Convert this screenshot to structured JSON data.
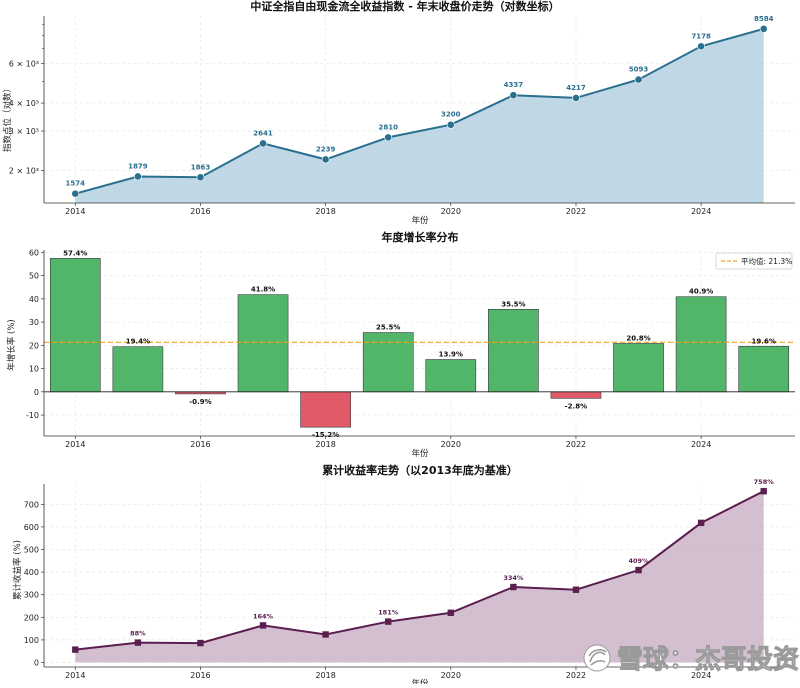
{
  "chart_data": [
    {
      "type": "line",
      "title": "中证全指自由现金流全收益指数 - 年末收盘价走势（对数坐标）",
      "xlabel": "年份",
      "ylabel": "指数点位（对数）",
      "x": [
        2014,
        2015,
        2016,
        2017,
        2018,
        2019,
        2020,
        2021,
        2022,
        2023,
        2024,
        2025
      ],
      "values": [
        1574,
        1879,
        1863,
        2641,
        2239,
        2810,
        3200,
        4337,
        4217,
        5093,
        7178,
        8584
      ],
      "data_labels": [
        "1574",
        "1879",
        "1863",
        "2641",
        "2239",
        "2810",
        "3200",
        "4337",
        "4217",
        "5093",
        "7178",
        "8584"
      ],
      "x_ticks": [
        "2014",
        "2016",
        "2018",
        "2020",
        "2022",
        "2024"
      ],
      "y_ticks": [
        {
          "value": 2000,
          "label": "2 × 10³"
        },
        {
          "value": 3000,
          "label": "3 × 10³"
        },
        {
          "value": 4000,
          "label": "4 × 10³"
        },
        {
          "value": 6000,
          "label": "6 × 10³"
        }
      ],
      "y_scale": "log",
      "xlim": [
        2013.5,
        2025.5
      ],
      "ylim": [
        1430,
        9800
      ],
      "line_color": "#2a6f8f",
      "fill_color": "#b9d4e2",
      "grid": true
    },
    {
      "type": "bar",
      "title": "年度增长率分布",
      "xlabel": "年份",
      "ylabel": "年增长率 (%)",
      "x": [
        2014,
        2015,
        2016,
        2017,
        2018,
        2019,
        2020,
        2021,
        2022,
        2023,
        2024,
        2025
      ],
      "values": [
        57.4,
        19.4,
        -0.9,
        41.8,
        -15.2,
        25.5,
        13.9,
        35.5,
        -2.8,
        20.8,
        40.9,
        19.6
      ],
      "data_labels": [
        "57.4%",
        "19.4%",
        "-0.9%",
        "41.8%",
        "-15.2%",
        "25.5%",
        "13.9%",
        "35.5%",
        "-2.8%",
        "20.8%",
        "40.9%",
        "19.6%"
      ],
      "x_ticks": [
        "2014",
        "2016",
        "2018",
        "2020",
        "2022",
        "2024"
      ],
      "y_ticks": [
        -10,
        0,
        10,
        20,
        30,
        40,
        50,
        60
      ],
      "xlim": [
        2013.5,
        2025.5
      ],
      "ylim": [
        -19,
        61
      ],
      "mean": 21.3,
      "legend_label": "平均值: 21.3%",
      "legend_position": "top-right",
      "positive_color": "#52b66a",
      "negative_color": "#e05a6a",
      "mean_line_color": "#f0a020",
      "grid": true
    },
    {
      "type": "area",
      "title": "累计收益率走势（以2013年底为基准）",
      "xlabel": "年份",
      "ylabel": "累计收益率 (%)",
      "x": [
        2014,
        2015,
        2016,
        2017,
        2018,
        2019,
        2020,
        2021,
        2022,
        2023,
        2024,
        2025
      ],
      "values": [
        57,
        88,
        86,
        164,
        124,
        181,
        220,
        334,
        322,
        409,
        618,
        758
      ],
      "annotations": [
        {
          "x": 2015,
          "label": "88%"
        },
        {
          "x": 2017,
          "label": "164%"
        },
        {
          "x": 2019,
          "label": "181%"
        },
        {
          "x": 2021,
          "label": "334%"
        },
        {
          "x": 2023,
          "label": "409%"
        },
        {
          "x": 2025,
          "label": "758%"
        }
      ],
      "x_ticks": [
        "2014",
        "2016",
        "2018",
        "2020",
        "2022",
        "2024"
      ],
      "y_ticks": [
        0,
        100,
        200,
        300,
        400,
        500,
        600,
        700
      ],
      "xlim": [
        2013.5,
        2025.5
      ],
      "ylim": [
        -20,
        790
      ],
      "line_color": "#5a1f4f",
      "fill_color": "#d2bccf",
      "grid": true
    }
  ],
  "watermark": {
    "text": "雪球：杰哥投资",
    "logo_icon": "snowball-logo-icon"
  }
}
